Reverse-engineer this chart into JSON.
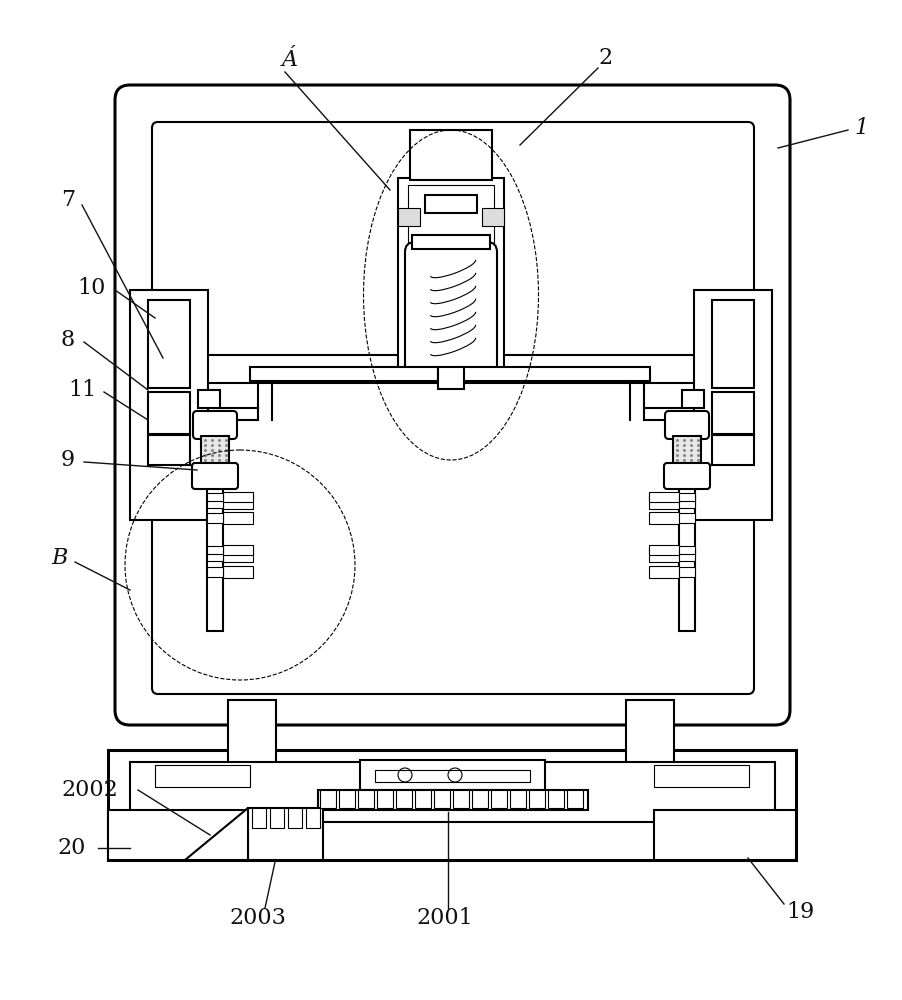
{
  "bg_color": "#ffffff",
  "lc": "#000000",
  "figsize": [
    9.02,
    10.0
  ],
  "dpi": 100,
  "lw_thick": 2.2,
  "lw_main": 1.5,
  "lw_thin": 0.8,
  "ann_lw": 1.0,
  "font_size": 16
}
